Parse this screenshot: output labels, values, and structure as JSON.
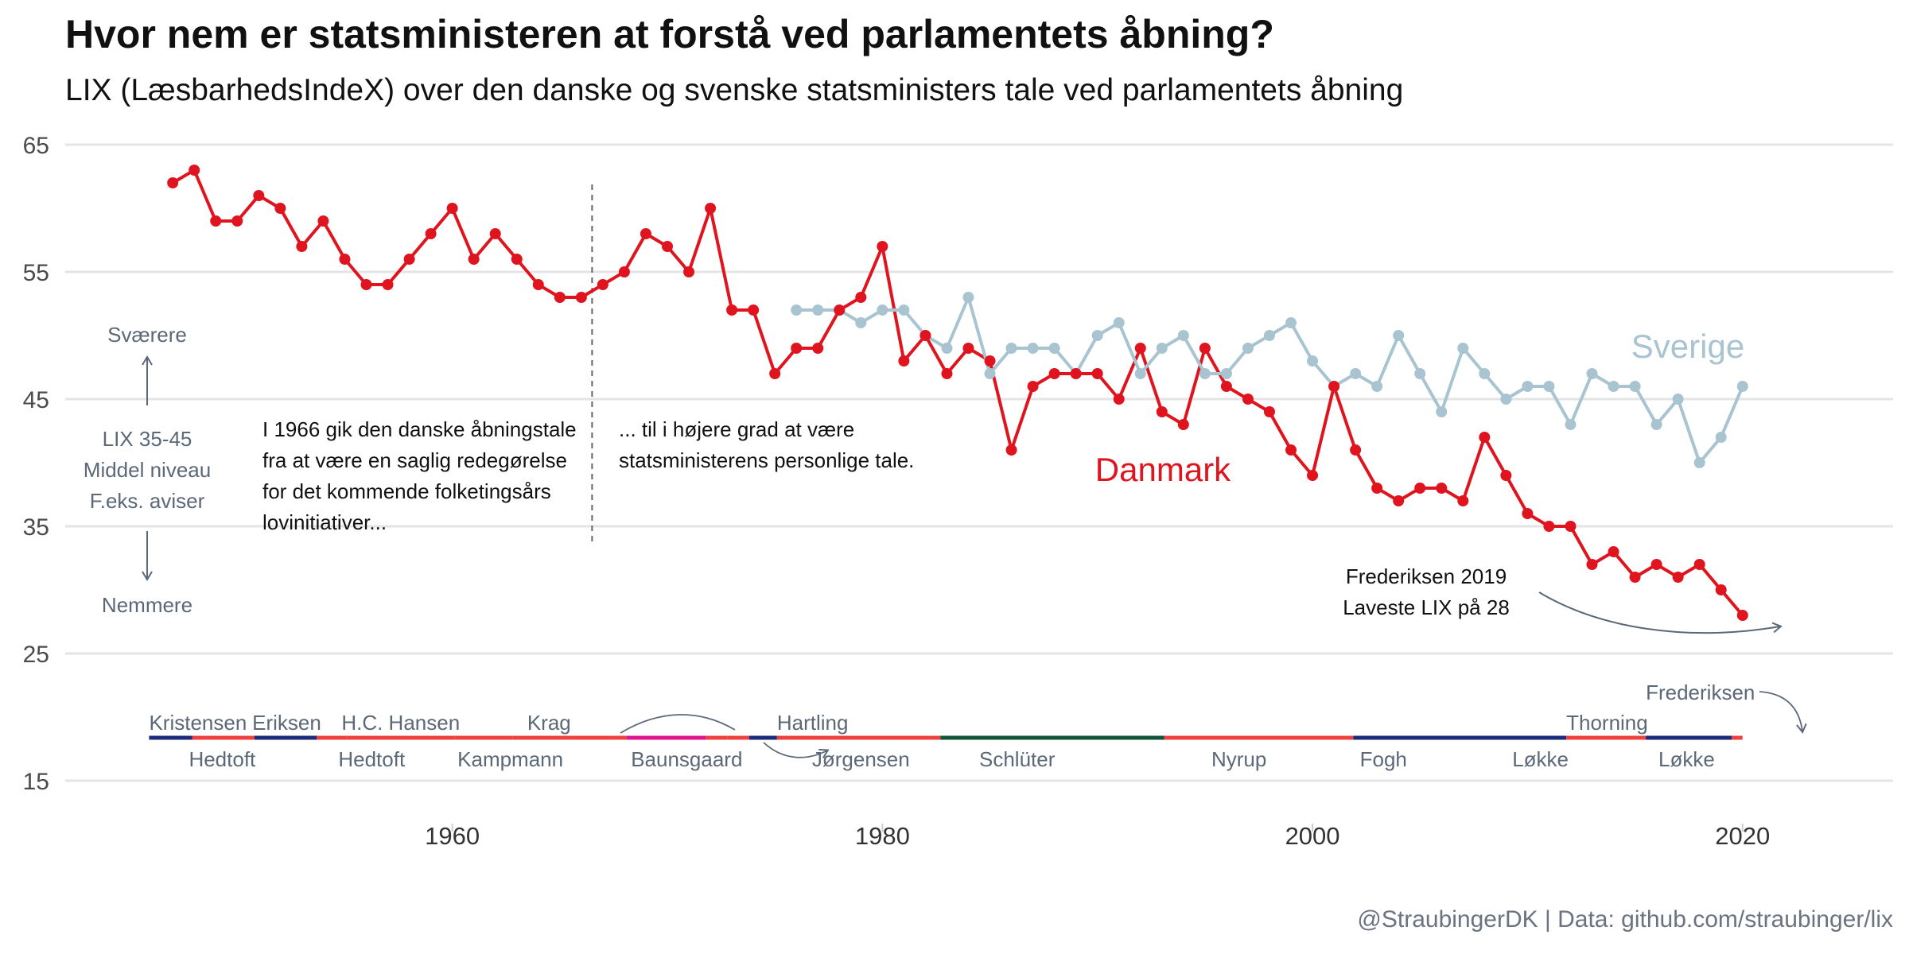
{
  "title": "Hvor nem er statsministeren at forstå ved parlamentets åbning?",
  "subtitle": "LIX (LæsbarhedsIndeX) over den danske og svenske statsministers tale ved parlamentets åbning",
  "caption": "@StraubingerDK | Data: github.com/straubinger/lix",
  "chart_data": {
    "type": "line",
    "xlim": [
      1942,
      2027
    ],
    "ylim": [
      12,
      67
    ],
    "x_ticks": [
      1960,
      1980,
      2000,
      2020
    ],
    "y_ticks": [
      15,
      25,
      35,
      45,
      55,
      65
    ],
    "grid": "horizontal",
    "series": [
      {
        "name": "Danmark",
        "color": "#e0141e",
        "x": [
          1947,
          1948,
          1949,
          1950,
          1951,
          1952,
          1953,
          1954,
          1955,
          1956,
          1957,
          1958,
          1959,
          1960,
          1961,
          1962,
          1963,
          1964,
          1965,
          1966,
          1967,
          1968,
          1969,
          1970,
          1971,
          1972,
          1973,
          1974,
          1975,
          1976,
          1977,
          1978,
          1979,
          1980,
          1981,
          1982,
          1983,
          1984,
          1985,
          1986,
          1987,
          1988,
          1989,
          1990,
          1991,
          1992,
          1993,
          1994,
          1995,
          1996,
          1997,
          1998,
          1999,
          2000,
          2001,
          2002,
          2003,
          2004,
          2005,
          2006,
          2007,
          2008,
          2009,
          2010,
          2011,
          2012,
          2013,
          2014,
          2015,
          2016,
          2017,
          2018,
          2019,
          2020
        ],
        "values": [
          62,
          63,
          59,
          59,
          61,
          60,
          57,
          59,
          56,
          54,
          54,
          56,
          58,
          60,
          56,
          58,
          56,
          54,
          53,
          53,
          54,
          55,
          58,
          57,
          55,
          60,
          52,
          52,
          47,
          49,
          49,
          52,
          53,
          57,
          48,
          50,
          47,
          49,
          48,
          41,
          46,
          47,
          47,
          47,
          45,
          49,
          44,
          43,
          49,
          46,
          45,
          44,
          41,
          39,
          46,
          41,
          38,
          37,
          38,
          38,
          37,
          42,
          39,
          36,
          35,
          35,
          32,
          33,
          31,
          32,
          31,
          32,
          30,
          28
        ]
      },
      {
        "name": "Sverige",
        "color": "#a8c4d0",
        "x": [
          1976,
          1977,
          1978,
          1979,
          1980,
          1981,
          1982,
          1983,
          1984,
          1985,
          1986,
          1987,
          1988,
          1989,
          1990,
          1991,
          1992,
          1993,
          1994,
          1995,
          1996,
          1997,
          1998,
          1999,
          2000,
          2001,
          2002,
          2003,
          2004,
          2005,
          2006,
          2007,
          2008,
          2009,
          2010,
          2011,
          2012,
          2013,
          2014,
          2015,
          2016,
          2017,
          2018,
          2019,
          2020
        ],
        "values": [
          52,
          52,
          52,
          51,
          52,
          52,
          50,
          49,
          53,
          47,
          49,
          49,
          49,
          47,
          50,
          51,
          47,
          49,
          50,
          47,
          47,
          49,
          50,
          51,
          48,
          46,
          47,
          46,
          50,
          47,
          44,
          49,
          47,
          45,
          46,
          46,
          43,
          47,
          46,
          46,
          43,
          45,
          40,
          42,
          46
        ]
      }
    ],
    "annotations": {
      "harder": "Sværere",
      "middle": [
        "LIX 35-45",
        "Middel niveau",
        "F.eks. aviser"
      ],
      "easier": "Nemmere",
      "note_1966": [
        "I 1966 gik den danske åbningstale",
        "fra at være en saglig redegørelse",
        "for det kommende folketingsårs",
        "lovinitiativer..."
      ],
      "note_after": [
        "... til i højere grad at være",
        "statsministerens personlige tale."
      ],
      "lowest": [
        "Frederiksen 2019",
        "Laveste LIX på 28"
      ],
      "divider_year": 1966.5
    },
    "pm_periods": [
      {
        "name": "Kristensen",
        "start": 1945.9,
        "end": 1947.9,
        "color": "#1b2a7a",
        "label_pos": "top",
        "label_x": 1945.9
      },
      {
        "name": "Hedtoft",
        "start": 1947.9,
        "end": 1950.8,
        "color": "#ef4040",
        "label_pos": "bottom",
        "label_x": 1949.3
      },
      {
        "name": "Eriksen",
        "start": 1950.8,
        "end": 1953.7,
        "color": "#1b2a7a",
        "label_pos": "top",
        "label_x": 1952.3
      },
      {
        "name": "Hedtoft",
        "start": 1953.7,
        "end": 1955.1,
        "color": "#ef4040",
        "label_pos": "bottom",
        "label_x": 1954.7
      },
      {
        "name": "H.C. Hansen",
        "start": 1955.1,
        "end": 1960.1,
        "color": "#ef4040",
        "label_pos": "top",
        "label_x": 1957.6
      },
      {
        "name": "Kampmann",
        "start": 1960.1,
        "end": 1962.8,
        "color": "#ef4040",
        "label_pos": "bottom",
        "label_x": 1962.7
      },
      {
        "name": "Krag",
        "start": 1962.8,
        "end": 1968.1,
        "color": "#ef4040",
        "label_pos": "top",
        "label_x": 1964.5
      },
      {
        "name": "Baunsgaard",
        "start": 1968.1,
        "end": 1971.8,
        "color": "#e0148c",
        "label_pos": "bottom",
        "label_x": 1970.9
      },
      {
        "name": "Krag",
        "start": 1971.8,
        "end": 1972.8,
        "color": "#ef4040",
        "label_pos": "none"
      },
      {
        "name": "Jørgensen",
        "start": 1972.8,
        "end": 1973.8,
        "color": "#ef4040",
        "label_pos": "none"
      },
      {
        "name": "Hartling",
        "start": 1973.8,
        "end": 1975.1,
        "color": "#1b2a7a",
        "label_pos": "top",
        "label_x": 1975.1
      },
      {
        "name": "Jørgensen",
        "start": 1975.1,
        "end": 1982.7,
        "color": "#ef4040",
        "label_pos": "bottom",
        "label_x": 1979.0
      },
      {
        "name": "Schlüter",
        "start": 1982.7,
        "end": 1993.1,
        "color": "#0f5436",
        "label_pos": "bottom",
        "label_x": 1984.5
      },
      {
        "name": "Nyrup",
        "start": 1993.1,
        "end": 2001.9,
        "color": "#ef4040",
        "label_pos": "bottom",
        "label_x": 1995.3
      },
      {
        "name": "Fogh",
        "start": 2001.9,
        "end": 2009.3,
        "color": "#1b2a7a",
        "label_pos": "bottom",
        "label_x": 2003.3
      },
      {
        "name": "Løkke",
        "start": 2009.3,
        "end": 2011.8,
        "color": "#1b2a7a",
        "label_pos": "bottom",
        "label_x": 2010.6
      },
      {
        "name": "Thorning",
        "start": 2011.8,
        "end": 2015.5,
        "color": "#ef4040",
        "label_pos": "top",
        "label_x": 2013.7
      },
      {
        "name": "Løkke",
        "start": 2015.5,
        "end": 2019.5,
        "color": "#1b2a7a",
        "label_pos": "bottom",
        "label_x": 2017.4
      },
      {
        "name": "Frederiksen",
        "start": 2019.5,
        "end": 2020.0,
        "color": "#ef4040",
        "label_pos": "upper",
        "label_x": 2015.5
      }
    ]
  }
}
